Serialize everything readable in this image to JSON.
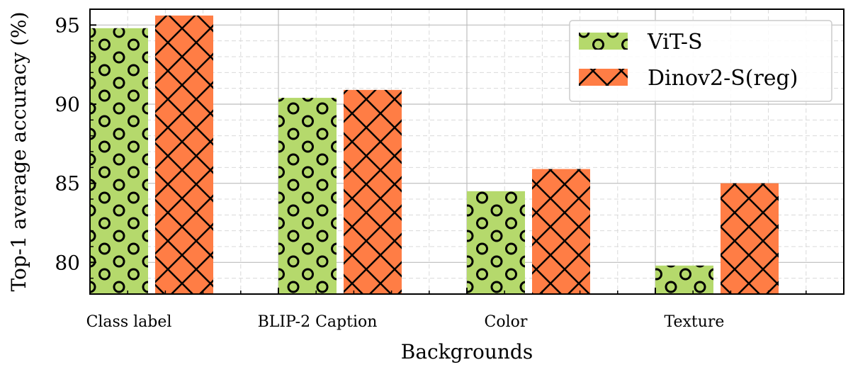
{
  "chart_data": {
    "type": "bar",
    "xlabel": "Backgrounds",
    "ylabel": "Top-1 average accuracy (%)",
    "categories": [
      "Class label",
      "BLIP-2 Caption",
      "Color",
      "Texture"
    ],
    "series": [
      {
        "name": "ViT-S",
        "values": [
          94.8,
          90.4,
          84.5,
          79.8
        ],
        "color": "#b5d96c",
        "hatch": "circles"
      },
      {
        "name": "Dinov2-S(reg)",
        "values": [
          95.6,
          90.9,
          85.9,
          85.0
        ],
        "color": "#ff7d45",
        "hatch": "crosshatch"
      }
    ],
    "ylim": [
      78,
      96
    ],
    "yticks": [
      80,
      85,
      90,
      95
    ],
    "grid": true,
    "legend_position": "top-right"
  }
}
